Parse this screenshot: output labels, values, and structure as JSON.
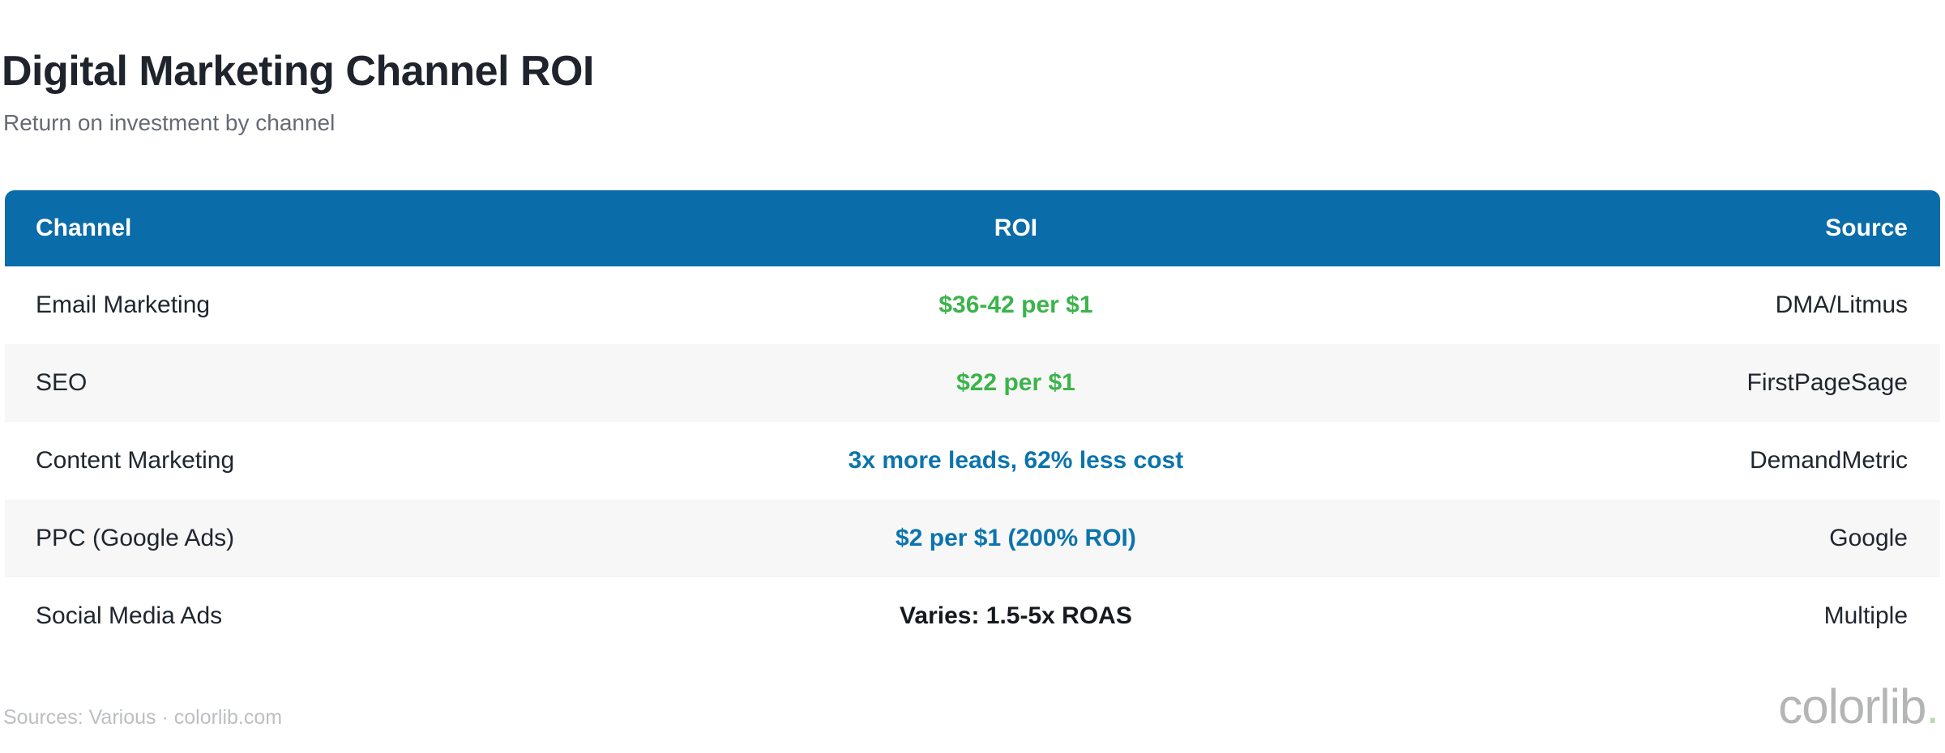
{
  "header": {
    "title": "Digital Marketing Channel ROI",
    "subtitle": "Return on investment by channel"
  },
  "table": {
    "columns": [
      {
        "label": "Channel",
        "align": "left"
      },
      {
        "label": "ROI",
        "align": "center"
      },
      {
        "label": "Source",
        "align": "right"
      }
    ],
    "rows": [
      {
        "channel": "Email Marketing",
        "roi": "$36-42 per $1",
        "roi_color": "green",
        "source": "DMA/Litmus"
      },
      {
        "channel": "SEO",
        "roi": "$22 per $1",
        "roi_color": "green",
        "source": "FirstPageSage"
      },
      {
        "channel": "Content Marketing",
        "roi": "3x more leads, 62% less cost",
        "roi_color": "blue",
        "source": "DemandMetric"
      },
      {
        "channel": "PPC (Google Ads)",
        "roi": "$2 per $1 (200% ROI)",
        "roi_color": "blue",
        "source": "Google"
      },
      {
        "channel": "Social Media Ads",
        "roi": "Varies: 1.5-5x ROAS",
        "roi_color": "dark",
        "source": "Multiple"
      }
    ]
  },
  "footer": {
    "sources": "Sources: Various · colorlib.com",
    "watermark": "colorlib",
    "watermark_dot": "."
  },
  "colors": {
    "header_bg": "#0a6ca8",
    "roi_green": "#3bb44a",
    "roi_blue": "#0c74ad",
    "roi_dark": "#16191d",
    "row_alt_bg": "#f7f7f8",
    "title_text": "#1f242c",
    "subtitle_text": "#666b73",
    "footer_text": "#bcbfc2"
  },
  "chart_data": {
    "type": "table",
    "title": "Digital Marketing Channel ROI",
    "subtitle": "Return on investment by channel",
    "columns": [
      "Channel",
      "ROI",
      "Source"
    ],
    "rows": [
      [
        "Email Marketing",
        "$36-42 per $1",
        "DMA/Litmus"
      ],
      [
        "SEO",
        "$22 per $1",
        "FirstPageSage"
      ],
      [
        "Content Marketing",
        "3x more leads, 62% less cost",
        "DemandMetric"
      ],
      [
        "PPC (Google Ads)",
        "$2 per $1 (200% ROI)",
        "Google"
      ],
      [
        "Social Media Ads",
        "Varies: 1.5-5x ROAS",
        "Multiple"
      ]
    ],
    "legend_position": "none",
    "grid": false
  }
}
